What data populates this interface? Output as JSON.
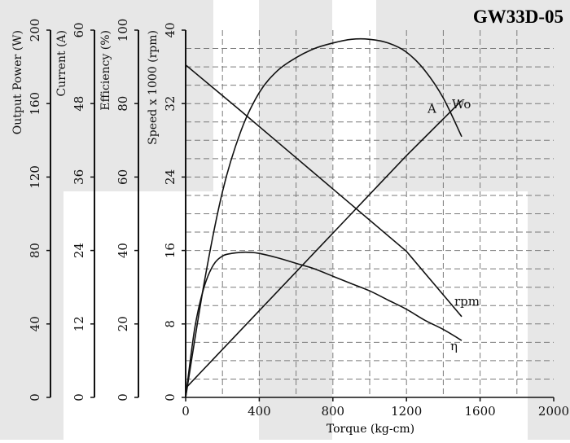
{
  "chart_data": {
    "type": "line",
    "title": "GW33D-05",
    "xlabel": "Torque (kg-cm)",
    "xlim": [
      0,
      2000
    ],
    "x_ticks": [
      "0",
      "400",
      "800",
      "1200",
      "1600",
      "2000"
    ],
    "grid": true,
    "axes": [
      {
        "id": "power",
        "label": "Output Power (W)",
        "lim": [
          0,
          200
        ],
        "ticks": [
          "0",
          "40",
          "80",
          "120",
          "160",
          "200"
        ]
      },
      {
        "id": "current",
        "label": "Current (A)",
        "lim": [
          0,
          60
        ],
        "ticks": [
          "0",
          "12",
          "24",
          "36",
          "48",
          "60"
        ]
      },
      {
        "id": "efficiency",
        "label": "Efficiency (%)",
        "lim": [
          0,
          100
        ],
        "ticks": [
          "0",
          "20",
          "40",
          "60",
          "80",
          "100"
        ]
      },
      {
        "id": "speed",
        "label": "Speed x 1000 (rpm)",
        "lim": [
          0,
          40
        ],
        "ticks": [
          "0",
          "8",
          "16",
          "24",
          "32",
          "40"
        ]
      }
    ],
    "series": [
      {
        "name": "Wo",
        "axis": "power",
        "x": [
          0,
          100,
          200,
          300,
          400,
          500,
          600,
          700,
          800,
          900,
          1000,
          1100,
          1200,
          1300,
          1400,
          1500
        ],
        "y": [
          0,
          62,
          112,
          145,
          166,
          178,
          185,
          190,
          193,
          195,
          195,
          193,
          188,
          178,
          163,
          142
        ]
      },
      {
        "name": "A",
        "axis": "current",
        "x": [
          0,
          300,
          600,
          900,
          1200,
          1500
        ],
        "y": [
          1.5,
          11,
          20.5,
          30,
          39.5,
          48.5
        ]
      },
      {
        "name": "rpm",
        "axis": "speed",
        "x": [
          0,
          300,
          600,
          900,
          1200,
          1500
        ],
        "y": [
          36.2,
          31.2,
          26.1,
          21.0,
          15.9,
          8.8
        ]
      },
      {
        "name": "η",
        "axis": "efficiency",
        "x": [
          0,
          50,
          100,
          150,
          200,
          250,
          300,
          350,
          400,
          500,
          600,
          700,
          800,
          900,
          1000,
          1100,
          1200,
          1300,
          1400,
          1500
        ],
        "y": [
          0,
          19,
          30,
          36,
          38.5,
          39.2,
          39.5,
          39.5,
          39.2,
          38,
          36.5,
          35,
          33,
          31,
          29,
          26.5,
          24,
          21,
          18.5,
          15.5
        ]
      }
    ]
  }
}
